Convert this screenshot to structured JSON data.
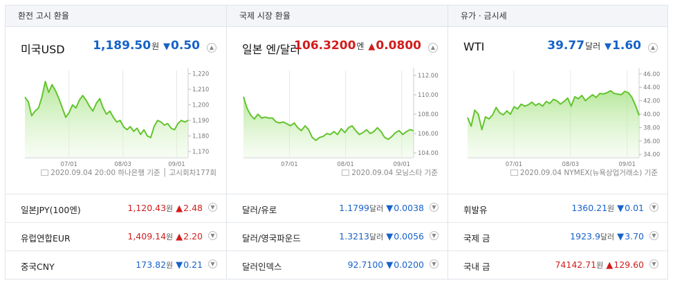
{
  "panels": [
    {
      "header": "환전 고시 환율",
      "title": "미국USD",
      "value": "1,189.50",
      "unit": "원",
      "change": "0.50",
      "direction": "down",
      "source": "2020.09.04 20:00  하나은행 기준  │ 고시회차177회",
      "chart_data": {
        "type": "area",
        "x_ticks": [
          "07/01",
          "08/03",
          "09/01"
        ],
        "y_ticks": [
          "1,220",
          "1,210",
          "1,200",
          "1,190",
          "1,180",
          "1,170"
        ],
        "ylim": [
          1166,
          1222
        ],
        "values": [
          1205,
          1202,
          1193,
          1196,
          1198,
          1205,
          1215,
          1208,
          1213,
          1209,
          1204,
          1198,
          1192,
          1195,
          1200,
          1198,
          1203,
          1206,
          1203,
          1199,
          1196,
          1201,
          1204,
          1198,
          1194,
          1196,
          1192,
          1189,
          1190,
          1186,
          1184,
          1186,
          1183,
          1185,
          1181,
          1184,
          1180,
          1179,
          1186,
          1190,
          1189,
          1187,
          1188,
          1185,
          1184,
          1188,
          1190,
          1189,
          1190
        ]
      },
      "rows": [
        {
          "name": "일본JPY(100엔)",
          "value": "1,120.43",
          "unit": "원",
          "change": "2.48",
          "direction": "up"
        },
        {
          "name": "유럽연합EUR",
          "value": "1,409.14",
          "unit": "원",
          "change": "2.20",
          "direction": "up"
        },
        {
          "name": "중국CNY",
          "value": "173.82",
          "unit": "원",
          "change": "0.21",
          "direction": "down"
        }
      ]
    },
    {
      "header": "국제 시장 환율",
      "title": "일본 엔/달러",
      "value": "106.3200",
      "unit": "엔",
      "change": "0.0800",
      "direction": "up",
      "source": "2020.09.04  모닝스타  기준",
      "chart_data": {
        "type": "area",
        "x_ticks": [
          "07/01",
          "08/01",
          "09/01"
        ],
        "y_ticks": [
          "112.00",
          "110.00",
          "108.00",
          "106.00",
          "104.00"
        ],
        "ylim": [
          103.5,
          112.5
        ],
        "values": [
          109.8,
          108.6,
          107.9,
          107.5,
          108.0,
          107.6,
          107.7,
          107.6,
          107.6,
          107.2,
          107.1,
          107.2,
          107.0,
          106.8,
          107.1,
          106.6,
          106.3,
          106.8,
          106.4,
          105.6,
          105.3,
          105.6,
          105.7,
          106.0,
          105.9,
          106.2,
          105.9,
          106.5,
          106.1,
          106.6,
          106.8,
          106.3,
          105.9,
          106.1,
          106.4,
          106.0,
          106.2,
          106.6,
          106.2,
          105.6,
          105.4,
          105.7,
          106.1,
          106.3,
          105.9,
          106.2,
          106.4,
          106.3
        ]
      },
      "rows": [
        {
          "name": "달러/유로",
          "value": "1.1799",
          "unit": "달러",
          "change": "0.0038",
          "direction": "down"
        },
        {
          "name": "달러/영국파운드",
          "value": "1.3213",
          "unit": "달러",
          "change": "0.0056",
          "direction": "down"
        },
        {
          "name": "달러인덱스",
          "value": "92.7100",
          "unit": "",
          "change": "0.0200",
          "direction": "down"
        }
      ]
    },
    {
      "header": "유가 · 금시세",
      "title": "WTI",
      "value": "39.77",
      "unit": "달러",
      "change": "1.60",
      "direction": "down",
      "source": "2020.09.04  NYMEX(뉴욕상업거래소)  기준",
      "chart_data": {
        "type": "area",
        "x_ticks": [
          "07/01",
          "08/03",
          "09/01"
        ],
        "y_ticks": [
          "46.00",
          "44.00",
          "42.00",
          "40.00",
          "38.00",
          "36.00",
          "34.00"
        ],
        "ylim": [
          33.5,
          46.5
        ],
        "values": [
          39.5,
          38.2,
          40.6,
          40.0,
          37.7,
          39.6,
          39.3,
          39.9,
          41.0,
          40.2,
          39.9,
          40.5,
          40.0,
          41.1,
          40.8,
          41.5,
          41.2,
          41.4,
          41.8,
          41.3,
          41.6,
          41.2,
          41.9,
          41.6,
          42.2,
          42.0,
          41.5,
          41.9,
          42.4,
          41.2,
          42.6,
          42.3,
          42.8,
          42.0,
          42.5,
          42.9,
          42.5,
          43.1,
          43.0,
          43.2,
          43.5,
          43.1,
          43.0,
          42.9,
          43.4,
          43.2,
          42.5,
          41.3,
          39.8
        ]
      },
      "rows": [
        {
          "name": "휘발유",
          "value": "1360.21",
          "unit": "원",
          "change": "0.01",
          "direction": "down"
        },
        {
          "name": "국제 금",
          "value": "1923.9",
          "unit": "달러",
          "change": "3.70",
          "direction": "down"
        },
        {
          "name": "국내 금",
          "value": "74142.71",
          "unit": "원",
          "change": "129.60",
          "direction": "up"
        }
      ]
    }
  ],
  "colors": {
    "up": "#d21c1c",
    "down": "#1662c9",
    "line": "#62c42c"
  },
  "icons": {
    "up": "▲",
    "down": "▼",
    "toggle-up": "▲",
    "toggle-down": "▼"
  }
}
